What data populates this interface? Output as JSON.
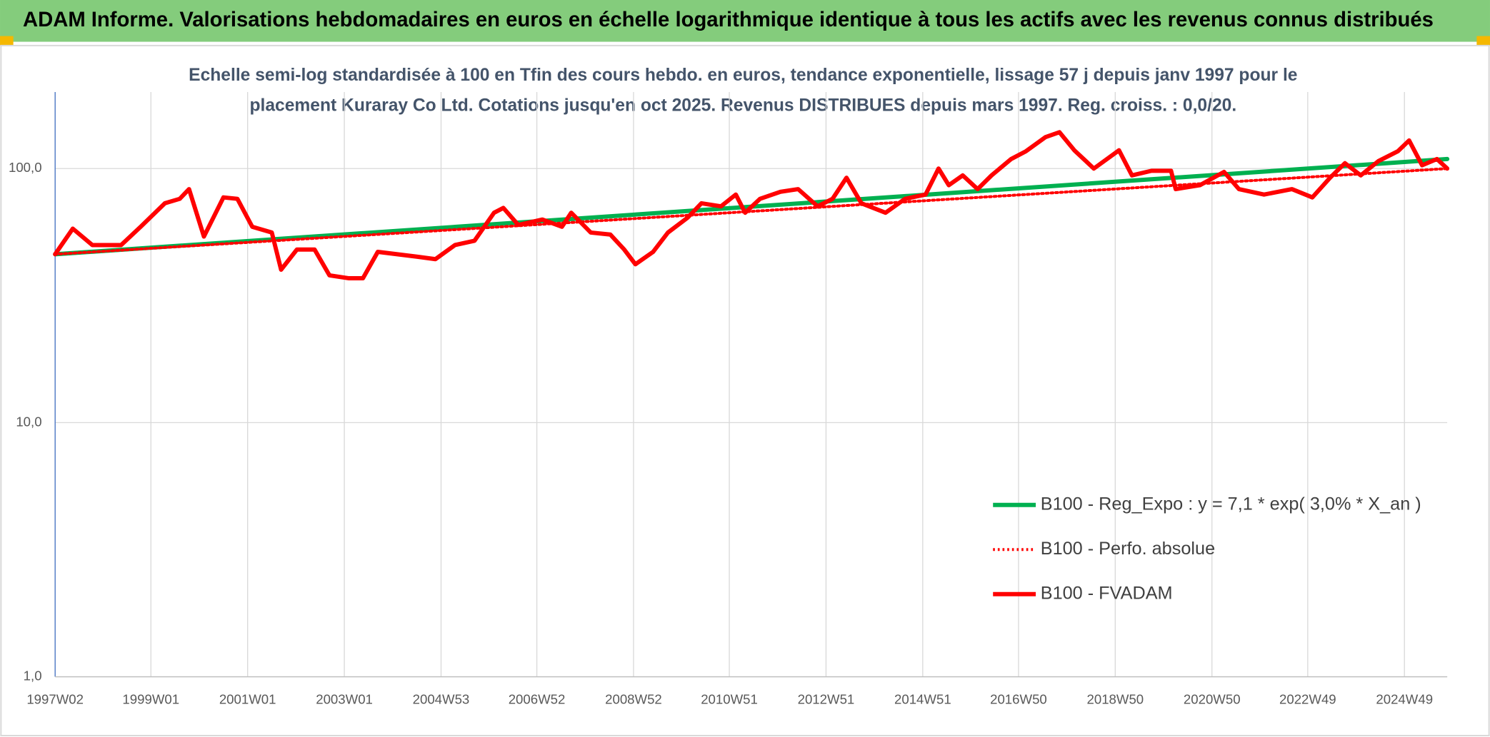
{
  "header": "ADAM Informe. Valorisations hebdomadaires en euros en échelle logarithmique identique à tous les actifs avec les revenus connus distribués",
  "chart_data": {
    "type": "line",
    "title": [
      "Echelle semi-log standardisée à 100 en Tfin des cours hebdo. en euros, tendance exponentielle, lissage 57 j depuis janv 1997 pour le",
      "placement Kuraray Co Ltd. Cotations jusqu'en oct 2025. Revenus DISTRIBUES depuis mars 1997. Reg. croiss. : 0,0/20."
    ],
    "log_scale": true,
    "grid": true,
    "legend_position": "lower right",
    "ylim": [
      1,
      200
    ],
    "yticks": [
      {
        "value": 1,
        "label": "1,0"
      },
      {
        "value": 10,
        "label": "10,0"
      },
      {
        "value": 100,
        "label": "100,0"
      }
    ],
    "xlim": [
      "1997W02",
      "2025W43"
    ],
    "xticks": [
      "1997W02",
      "1999W01",
      "2001W01",
      "2003W01",
      "2004W53",
      "2006W52",
      "2008W52",
      "2010W51",
      "2012W51",
      "2014W51",
      "2016W50",
      "2018W50",
      "2020W50",
      "2022W49",
      "2024W49"
    ],
    "series": [
      {
        "name": "B100 - Reg_Expo : y = 7,1 * exp( 3,0% *  X_an )",
        "color": "#00b050",
        "style": "solid",
        "x": [
          "1997W02",
          "2025W43"
        ],
        "values": [
          46,
          109
        ]
      },
      {
        "name": "B100 - Perfo. absolue",
        "color": "#ff0000",
        "style": "dotted",
        "x": [
          "1997W02",
          "2025W43"
        ],
        "values": [
          46,
          100
        ]
      },
      {
        "name": "B100 - FVADAM",
        "color": "#ff0000",
        "style": "solid",
        "x": [
          "1997W02",
          "1997W21",
          "1997W42",
          "1998W21",
          "1998W42",
          "1999W16",
          "1999W32",
          "1999W42",
          "2000W06",
          "2000W27",
          "2000W42",
          "2001W06",
          "2001W27",
          "2001W37",
          "2002W02",
          "2002W21",
          "2002W37",
          "2003W06",
          "2003W21",
          "2003W37",
          "2004W06",
          "2004W27",
          "2004W47",
          "2005W16",
          "2005W37",
          "2006W06",
          "2006W16",
          "2006W32",
          "2007W06",
          "2007W27",
          "2007W37",
          "2008W06",
          "2008W27",
          "2008W42",
          "2009W02",
          "2009W21",
          "2009W37",
          "2010W06",
          "2010W21",
          "2010W42",
          "2011W06",
          "2011W16",
          "2011W32",
          "2012W02",
          "2012W21",
          "2012W42",
          "2013W06",
          "2013W21",
          "2013W37",
          "2014W11",
          "2014W32",
          "2015W02",
          "2015W16",
          "2015W27",
          "2015W42",
          "2016W06",
          "2016W21",
          "2016W42",
          "2017W06",
          "2017W27",
          "2017W42",
          "2018W06",
          "2018W27",
          "2019W02",
          "2019W16",
          "2019W37",
          "2020W06",
          "2020W11",
          "2020W37",
          "2021W11",
          "2021W27",
          "2022W02",
          "2022W32",
          "2023W02",
          "2023W21",
          "2023W37",
          "2024W02",
          "2024W21",
          "2024W42",
          "2025W02",
          "2025W16",
          "2025W32",
          "2025W43"
        ],
        "values": [
          46,
          58,
          50,
          50,
          59,
          73,
          76,
          83,
          54,
          77,
          76,
          59,
          56,
          40,
          48,
          48,
          38,
          37,
          37,
          47,
          46,
          45,
          44,
          50,
          52,
          67,
          70,
          60,
          63,
          59,
          67,
          56,
          55,
          48,
          42,
          47,
          56,
          64,
          73,
          71,
          79,
          67,
          76,
          81,
          83,
          71,
          76,
          92,
          73,
          67,
          76,
          79,
          100,
          86,
          94,
          83,
          94,
          109,
          117,
          133,
          139,
          118,
          100,
          118,
          94,
          98,
          98,
          83,
          86,
          97,
          83,
          79,
          83,
          77,
          92,
          105,
          94,
          107,
          117,
          129,
          103,
          109,
          100
        ]
      }
    ]
  }
}
